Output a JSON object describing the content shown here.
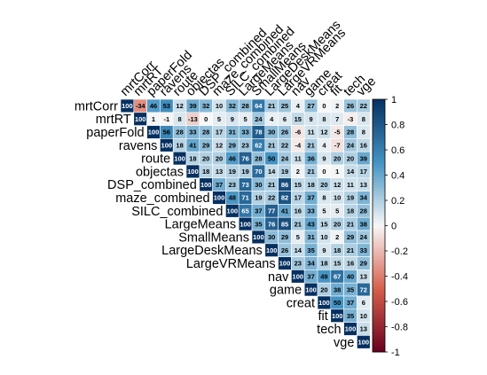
{
  "chart_data": {
    "type": "heatmap",
    "title": "",
    "layout": "upper-triangle",
    "variables": [
      "mrtCorr",
      "mrtRT",
      "paperFold",
      "ravens",
      "route",
      "objectas",
      "DSP_combined",
      "maze_combined",
      "SILC_combined",
      "LargeMeans",
      "SmallMeans",
      "LargeDeskMeans",
      "LargeVRMeans",
      "nav",
      "game",
      "creat",
      "fit",
      "tech",
      "vge"
    ],
    "rows": [
      [
        100,
        -34,
        46,
        53,
        12,
        39,
        32,
        10,
        32,
        28,
        64,
        21,
        25,
        4,
        27,
        0,
        2,
        26,
        22
      ],
      [
        100,
        1,
        -1,
        8,
        -13,
        0,
        5,
        9,
        5,
        24,
        4,
        6,
        15,
        9,
        8,
        7,
        -3,
        8
      ],
      [
        100,
        56,
        28,
        33,
        28,
        17,
        31,
        33,
        78,
        30,
        26,
        -6,
        11,
        12,
        -5,
        28,
        8
      ],
      [
        100,
        18,
        41,
        29,
        12,
        29,
        23,
        62,
        21,
        22,
        -4,
        21,
        4,
        -7,
        24,
        16
      ],
      [
        100,
        18,
        20,
        20,
        46,
        76,
        28,
        50,
        24,
        11,
        36,
        9,
        20,
        20,
        39
      ],
      [
        100,
        18,
        13,
        19,
        19,
        70,
        14,
        19,
        2,
        21,
        0,
        1,
        14,
        17
      ],
      [
        100,
        37,
        23,
        73,
        30,
        21,
        86,
        15,
        18,
        20,
        12,
        11,
        13
      ],
      [
        100,
        48,
        71,
        19,
        22,
        82,
        17,
        37,
        8,
        10,
        19,
        34
      ],
      [
        100,
        65,
        37,
        77,
        41,
        16,
        33,
        5,
        5,
        18,
        28
      ],
      [
        100,
        35,
        76,
        85,
        21,
        43,
        15,
        20,
        21,
        38
      ],
      [
        100,
        30,
        29,
        5,
        31,
        10,
        2,
        29,
        24
      ],
      [
        100,
        26,
        14,
        35,
        9,
        18,
        21,
        33
      ],
      [
        100,
        23,
        34,
        18,
        15,
        16,
        29
      ],
      [
        100,
        37,
        49,
        67,
        40,
        13
      ],
      [
        100,
        20,
        38,
        35,
        72
      ],
      [
        100,
        50,
        37,
        6
      ],
      [
        100,
        35,
        10
      ],
      [
        100,
        13
      ],
      [
        100
      ]
    ],
    "colorbar": {
      "range": [
        -1,
        1
      ],
      "ticks": [
        "1",
        "0.8",
        "0.6",
        "0.4",
        "0.2",
        "0",
        "-0.2",
        "-0.4",
        "-0.6",
        "-0.8",
        "-1"
      ],
      "colors": {
        "neg": "#67001f",
        "neg_mid": "#d6604d",
        "zero": "#f7f7f7",
        "pos_mid": "#4393c3",
        "pos": "#053061"
      }
    }
  }
}
